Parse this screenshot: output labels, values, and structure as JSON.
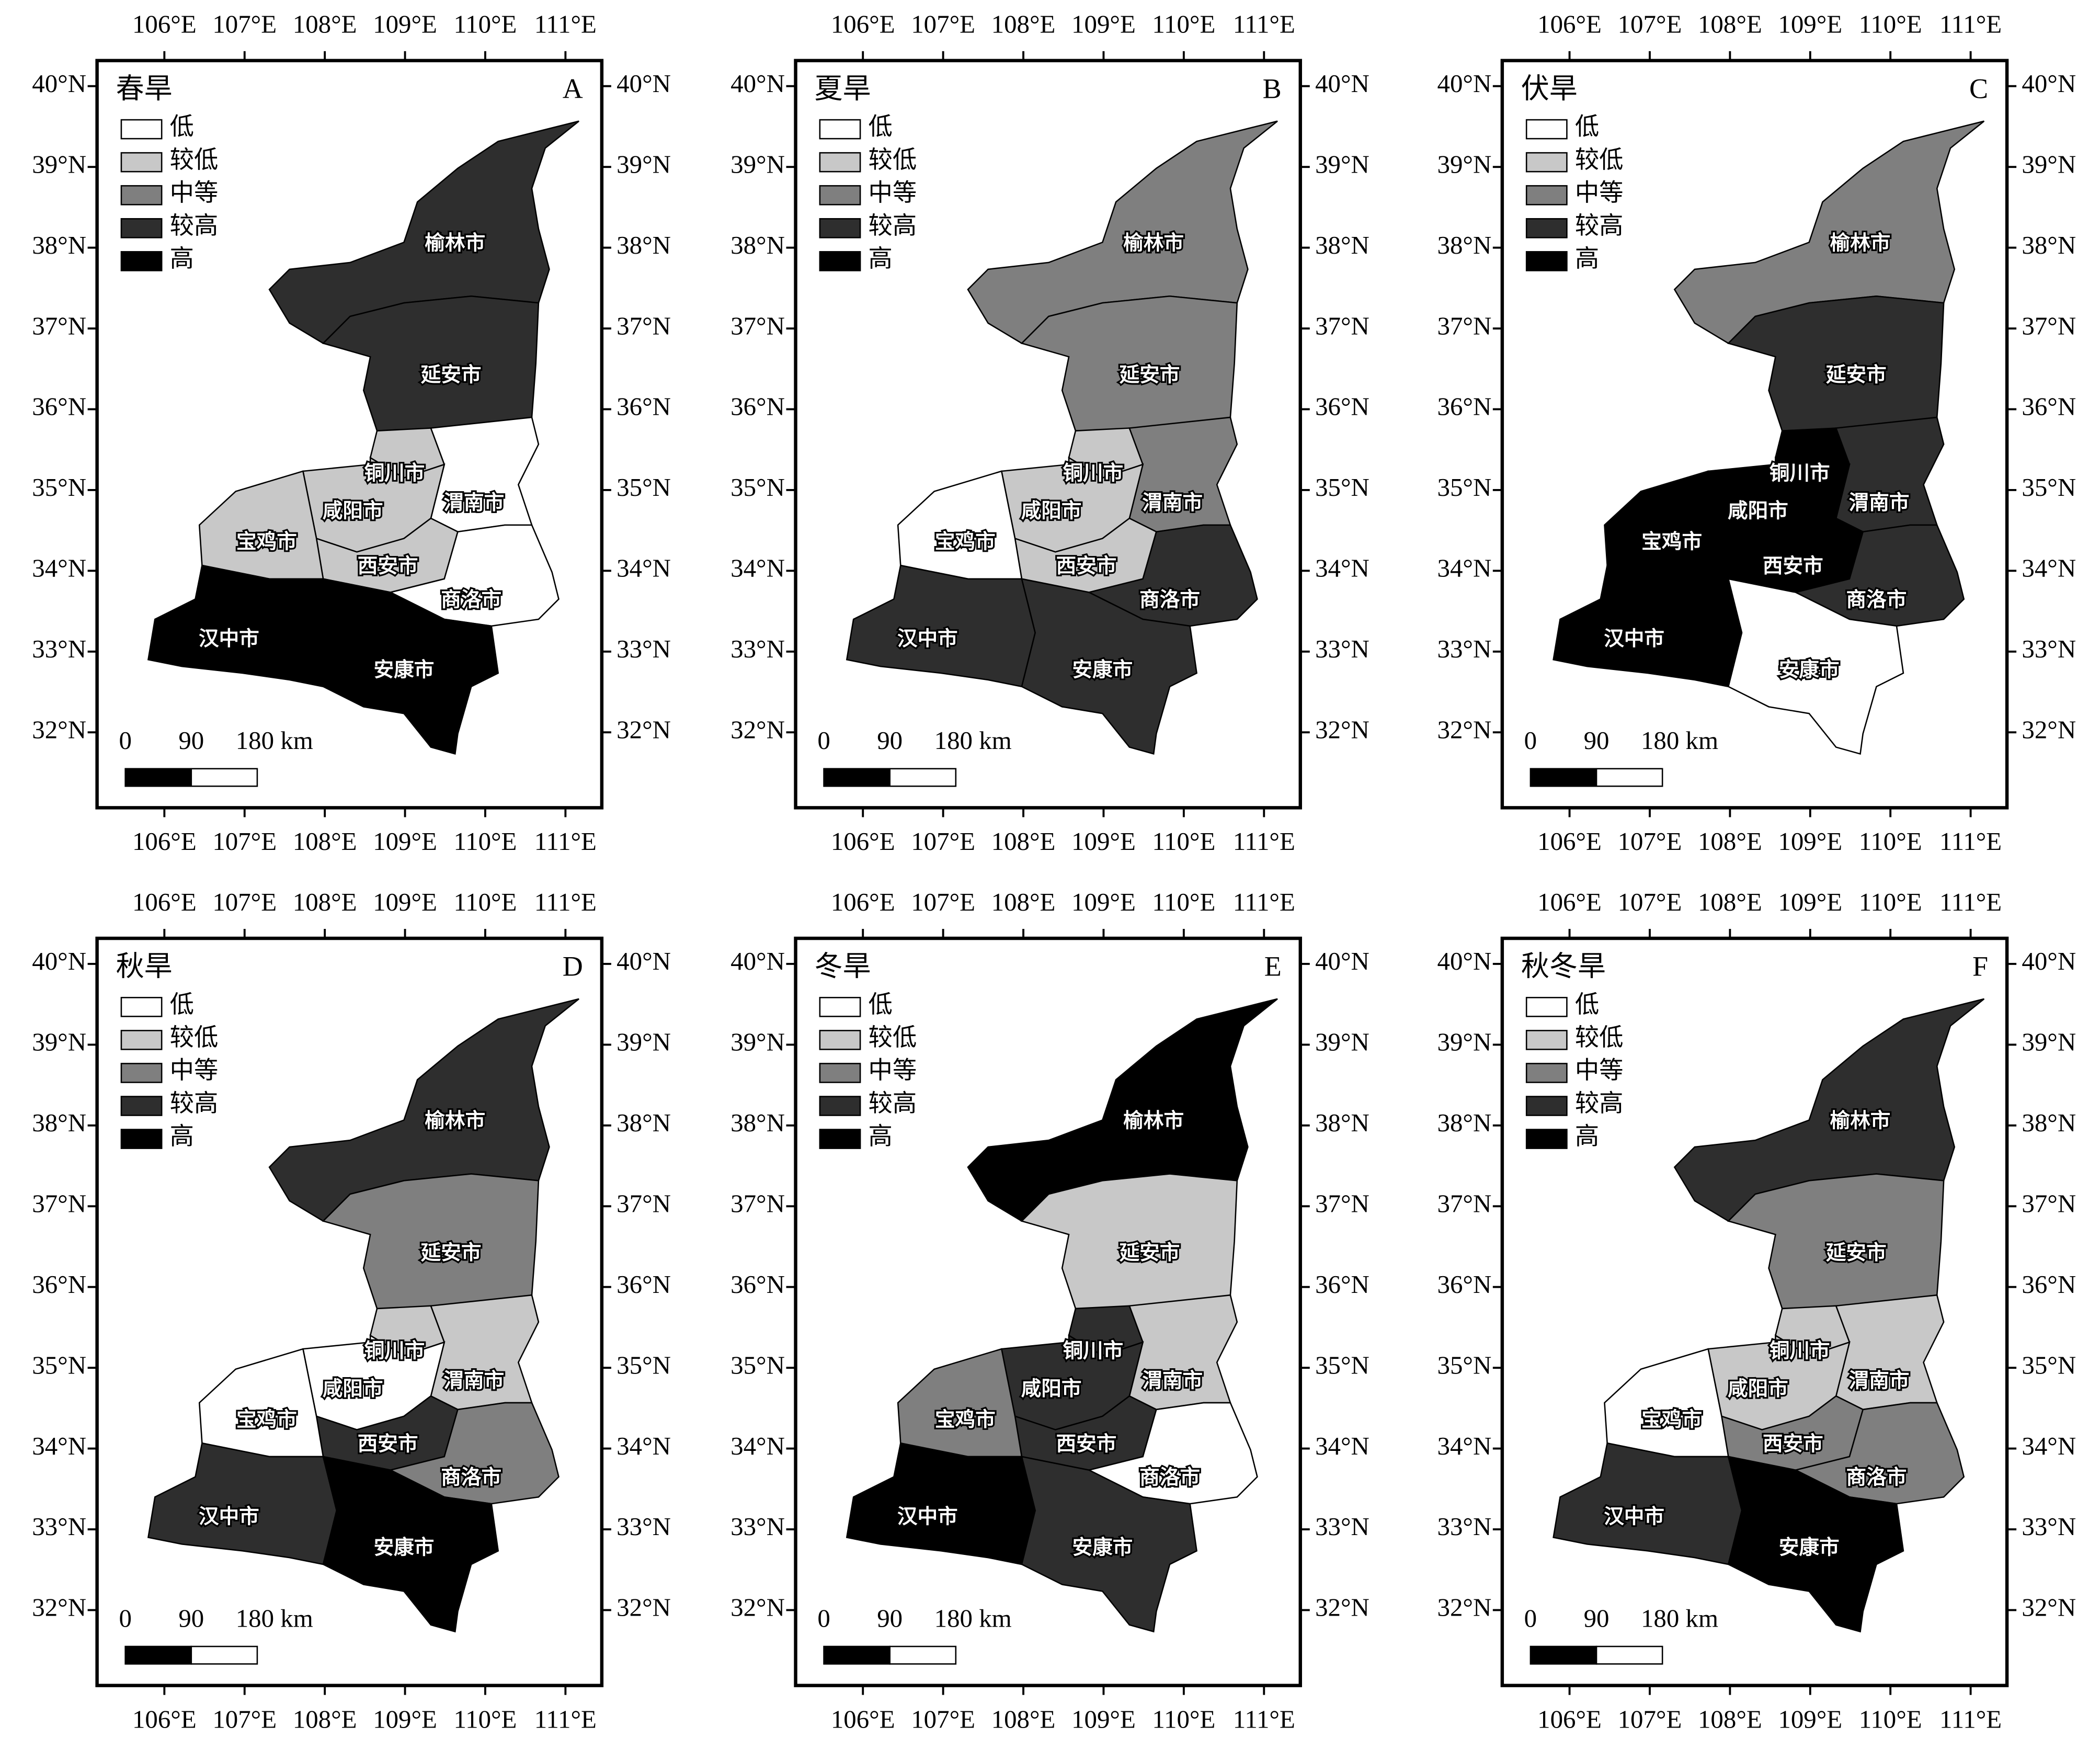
{
  "lon_ticks": [
    {
      "value": 106,
      "label": "106°E"
    },
    {
      "value": 107,
      "label": "107°E"
    },
    {
      "value": 108,
      "label": "108°E"
    },
    {
      "value": 109,
      "label": "109°E"
    },
    {
      "value": 110,
      "label": "110°E"
    },
    {
      "value": 111,
      "label": "111°E"
    }
  ],
  "lat_ticks": [
    {
      "value": 32,
      "label": "32°N"
    },
    {
      "value": 33,
      "label": "33°N"
    },
    {
      "value": 34,
      "label": "34°N"
    },
    {
      "value": 35,
      "label": "35°N"
    },
    {
      "value": 36,
      "label": "36°N"
    },
    {
      "value": 37,
      "label": "37°N"
    },
    {
      "value": 38,
      "label": "38°N"
    },
    {
      "value": 39,
      "label": "39°N"
    },
    {
      "value": 40,
      "label": "40°N"
    }
  ],
  "legend": [
    "低",
    "较低",
    "中等",
    "较高",
    "高"
  ],
  "colors": [
    "#ffffff",
    "#c8c8c8",
    "#7f7f7f",
    "#2e2e2e",
    "#000000"
  ],
  "scale_ticks": [
    0,
    90,
    {
      "value": 180,
      "label": "180 km"
    }
  ],
  "cities": [
    "榆林市",
    "延安市",
    "铜川市",
    "渭南市",
    "咸阳市",
    "西安市",
    "宝鸡市",
    "商洛市",
    "汉中市",
    "安康市"
  ],
  "panels": [
    {
      "title": "春旱",
      "letter": "A",
      "levels": [
        3,
        3,
        1,
        0,
        1,
        1,
        1,
        0,
        4,
        4
      ]
    },
    {
      "title": "夏旱",
      "letter": "B",
      "levels": [
        2,
        2,
        1,
        2,
        1,
        1,
        0,
        3,
        3,
        3
      ]
    },
    {
      "title": "伏旱",
      "letter": "C",
      "levels": [
        2,
        3,
        4,
        3,
        4,
        4,
        4,
        3,
        4,
        0
      ]
    },
    {
      "title": "秋旱",
      "letter": "D",
      "levels": [
        3,
        2,
        1,
        1,
        0,
        3,
        0,
        2,
        3,
        4
      ]
    },
    {
      "title": "冬旱",
      "letter": "E",
      "levels": [
        4,
        1,
        3,
        1,
        3,
        3,
        2,
        0,
        4,
        3
      ]
    },
    {
      "title": "秋冬旱",
      "letter": "F",
      "levels": [
        3,
        2,
        1,
        1,
        1,
        2,
        0,
        2,
        3,
        4
      ]
    }
  ]
}
